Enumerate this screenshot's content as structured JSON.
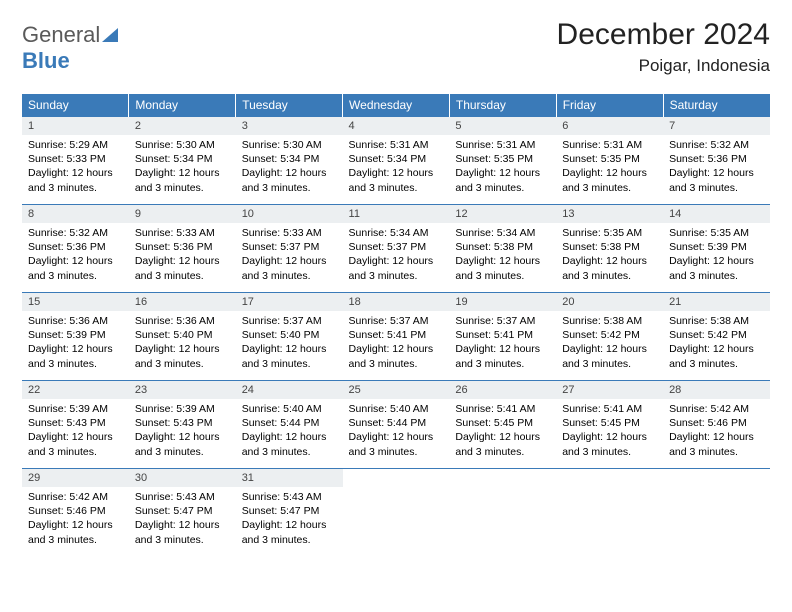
{
  "logo": {
    "general": "General",
    "blue": "Blue"
  },
  "title": "December 2024",
  "location": "Poigar, Indonesia",
  "colors": {
    "header_bg": "#3a7ab8",
    "header_text": "#ffffff",
    "daynum_bg": "#eceff1",
    "border": "#3a7ab8"
  },
  "weekdays": [
    "Sunday",
    "Monday",
    "Tuesday",
    "Wednesday",
    "Thursday",
    "Friday",
    "Saturday"
  ],
  "days": [
    {
      "n": "1",
      "sr": "5:29 AM",
      "ss": "5:33 PM",
      "dl": "12 hours and 3 minutes."
    },
    {
      "n": "2",
      "sr": "5:30 AM",
      "ss": "5:34 PM",
      "dl": "12 hours and 3 minutes."
    },
    {
      "n": "3",
      "sr": "5:30 AM",
      "ss": "5:34 PM",
      "dl": "12 hours and 3 minutes."
    },
    {
      "n": "4",
      "sr": "5:31 AM",
      "ss": "5:34 PM",
      "dl": "12 hours and 3 minutes."
    },
    {
      "n": "5",
      "sr": "5:31 AM",
      "ss": "5:35 PM",
      "dl": "12 hours and 3 minutes."
    },
    {
      "n": "6",
      "sr": "5:31 AM",
      "ss": "5:35 PM",
      "dl": "12 hours and 3 minutes."
    },
    {
      "n": "7",
      "sr": "5:32 AM",
      "ss": "5:36 PM",
      "dl": "12 hours and 3 minutes."
    },
    {
      "n": "8",
      "sr": "5:32 AM",
      "ss": "5:36 PM",
      "dl": "12 hours and 3 minutes."
    },
    {
      "n": "9",
      "sr": "5:33 AM",
      "ss": "5:36 PM",
      "dl": "12 hours and 3 minutes."
    },
    {
      "n": "10",
      "sr": "5:33 AM",
      "ss": "5:37 PM",
      "dl": "12 hours and 3 minutes."
    },
    {
      "n": "11",
      "sr": "5:34 AM",
      "ss": "5:37 PM",
      "dl": "12 hours and 3 minutes."
    },
    {
      "n": "12",
      "sr": "5:34 AM",
      "ss": "5:38 PM",
      "dl": "12 hours and 3 minutes."
    },
    {
      "n": "13",
      "sr": "5:35 AM",
      "ss": "5:38 PM",
      "dl": "12 hours and 3 minutes."
    },
    {
      "n": "14",
      "sr": "5:35 AM",
      "ss": "5:39 PM",
      "dl": "12 hours and 3 minutes."
    },
    {
      "n": "15",
      "sr": "5:36 AM",
      "ss": "5:39 PM",
      "dl": "12 hours and 3 minutes."
    },
    {
      "n": "16",
      "sr": "5:36 AM",
      "ss": "5:40 PM",
      "dl": "12 hours and 3 minutes."
    },
    {
      "n": "17",
      "sr": "5:37 AM",
      "ss": "5:40 PM",
      "dl": "12 hours and 3 minutes."
    },
    {
      "n": "18",
      "sr": "5:37 AM",
      "ss": "5:41 PM",
      "dl": "12 hours and 3 minutes."
    },
    {
      "n": "19",
      "sr": "5:37 AM",
      "ss": "5:41 PM",
      "dl": "12 hours and 3 minutes."
    },
    {
      "n": "20",
      "sr": "5:38 AM",
      "ss": "5:42 PM",
      "dl": "12 hours and 3 minutes."
    },
    {
      "n": "21",
      "sr": "5:38 AM",
      "ss": "5:42 PM",
      "dl": "12 hours and 3 minutes."
    },
    {
      "n": "22",
      "sr": "5:39 AM",
      "ss": "5:43 PM",
      "dl": "12 hours and 3 minutes."
    },
    {
      "n": "23",
      "sr": "5:39 AM",
      "ss": "5:43 PM",
      "dl": "12 hours and 3 minutes."
    },
    {
      "n": "24",
      "sr": "5:40 AM",
      "ss": "5:44 PM",
      "dl": "12 hours and 3 minutes."
    },
    {
      "n": "25",
      "sr": "5:40 AM",
      "ss": "5:44 PM",
      "dl": "12 hours and 3 minutes."
    },
    {
      "n": "26",
      "sr": "5:41 AM",
      "ss": "5:45 PM",
      "dl": "12 hours and 3 minutes."
    },
    {
      "n": "27",
      "sr": "5:41 AM",
      "ss": "5:45 PM",
      "dl": "12 hours and 3 minutes."
    },
    {
      "n": "28",
      "sr": "5:42 AM",
      "ss": "5:46 PM",
      "dl": "12 hours and 3 minutes."
    },
    {
      "n": "29",
      "sr": "5:42 AM",
      "ss": "5:46 PM",
      "dl": "12 hours and 3 minutes."
    },
    {
      "n": "30",
      "sr": "5:43 AM",
      "ss": "5:47 PM",
      "dl": "12 hours and 3 minutes."
    },
    {
      "n": "31",
      "sr": "5:43 AM",
      "ss": "5:47 PM",
      "dl": "12 hours and 3 minutes."
    }
  ],
  "labels": {
    "sunrise": "Sunrise: ",
    "sunset": "Sunset: ",
    "daylight": "Daylight: "
  }
}
